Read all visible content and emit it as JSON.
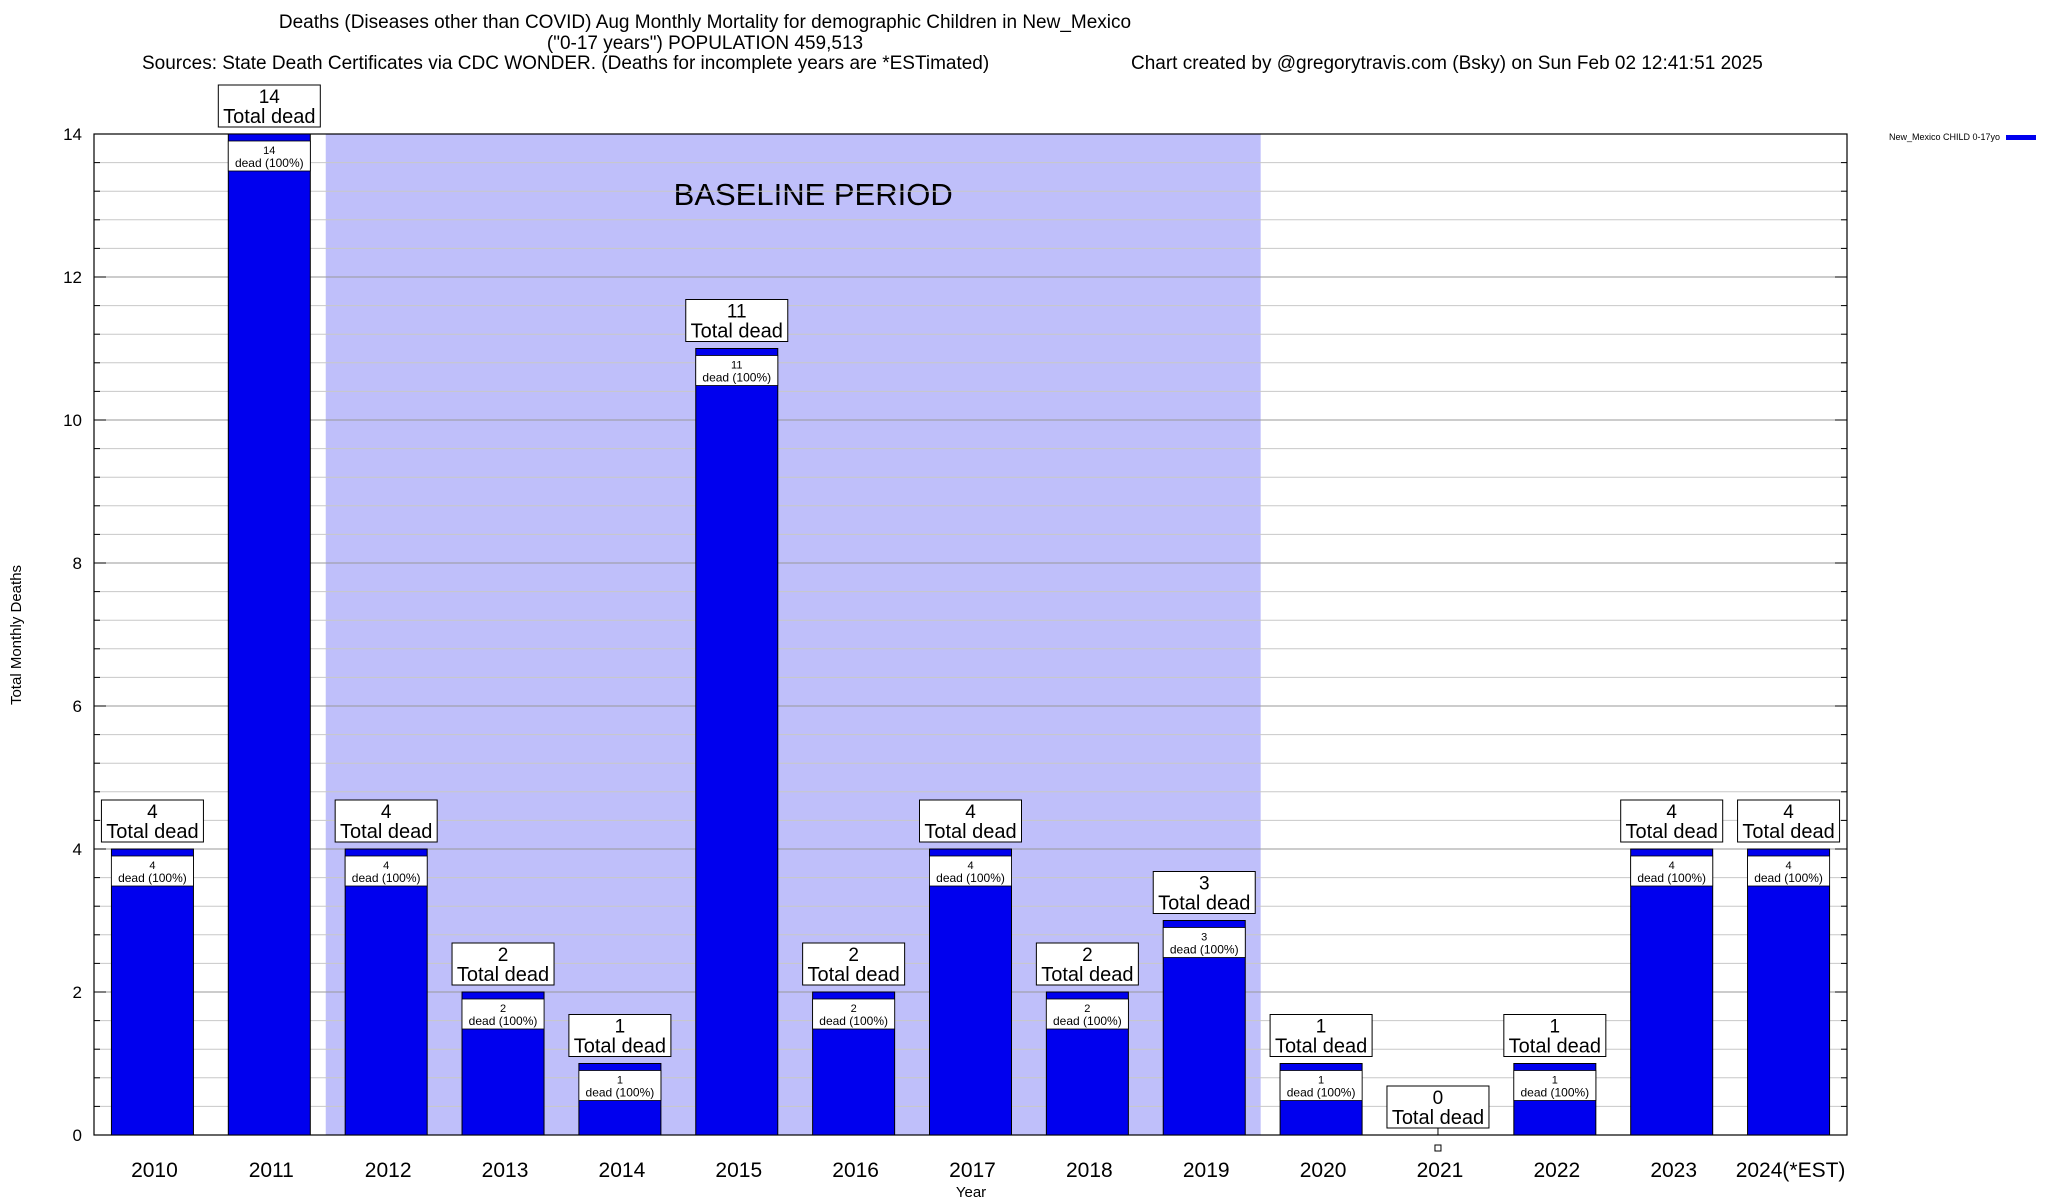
{
  "title": {
    "line1": "Deaths (Diseases other than COVID) Aug Monthly Mortality for demographic Children in New_Mexico",
    "line2": "(\"0-17 years\") POPULATION 459,513",
    "sources": "Sources: State Death Certificates via CDC WONDER. (Deaths for incomplete years are *ESTimated)",
    "credit": "Chart created by @gregorytravis.com (Bsky) on Sun Feb 02 12:41:51 2025"
  },
  "chart_data": {
    "type": "bar",
    "categories": [
      "2010",
      "2011",
      "2012",
      "2013",
      "2014",
      "2015",
      "2016",
      "2017",
      "2018",
      "2019",
      "2020",
      "2021",
      "2022",
      "2023",
      "2024(*EST)"
    ],
    "series": [
      {
        "name": "New_Mexico CHILD 0-17yo",
        "color": "#0000ee",
        "values": [
          4,
          14,
          4,
          2,
          1,
          11,
          2,
          4,
          2,
          3,
          1,
          0,
          1,
          4,
          4
        ]
      }
    ],
    "total_label_suffix": "Total dead",
    "bar_label_suffix": "dead (100%)",
    "xlabel": "Year",
    "ylabel": "Total Monthly Deaths",
    "ylim": [
      0,
      14
    ],
    "yticks": [
      0,
      2,
      4,
      6,
      8,
      10,
      12,
      14
    ],
    "grid": true,
    "legend": "top-right",
    "baseline": {
      "label": "BASELINE PERIOD",
      "from": "2012",
      "to": "2019",
      "color": "#bfbffa"
    }
  }
}
